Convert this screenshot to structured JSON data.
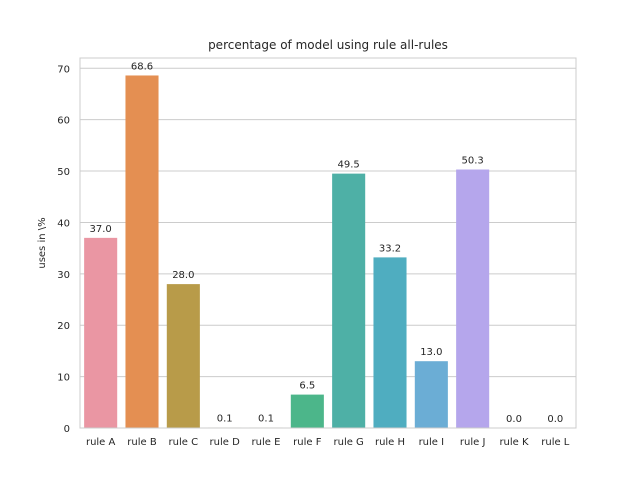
{
  "chart_data": {
    "type": "bar",
    "title": "percentage of model using rule all-rules",
    "xlabel": "",
    "ylabel": "uses in \\%",
    "ylim": [
      0,
      72
    ],
    "yticks": [
      0,
      10,
      20,
      30,
      40,
      50,
      60,
      70
    ],
    "grid": true,
    "categories": [
      "rule A",
      "rule B",
      "rule C",
      "rule D",
      "rule E",
      "rule F",
      "rule G",
      "rule H",
      "rule I",
      "rule J",
      "rule K",
      "rule L"
    ],
    "values": [
      37.0,
      68.6,
      28.0,
      0.1,
      0.1,
      6.5,
      49.5,
      33.2,
      13.0,
      50.3,
      0.0,
      0.0
    ],
    "data_labels": [
      "37.0",
      "68.6",
      "28.0",
      "0.1",
      "0.1",
      "6.5",
      "49.5",
      "33.2",
      "13.0",
      "50.3",
      "0.0",
      "0.0"
    ],
    "colors": [
      "#ea96a3",
      "#e48f52",
      "#b89b49",
      "#9aa549",
      "#77ae52",
      "#4cb68a",
      "#4eb0a6",
      "#4fadc0",
      "#6badd5",
      "#b5a6ec",
      "#e395d9",
      "#e99fba"
    ]
  }
}
